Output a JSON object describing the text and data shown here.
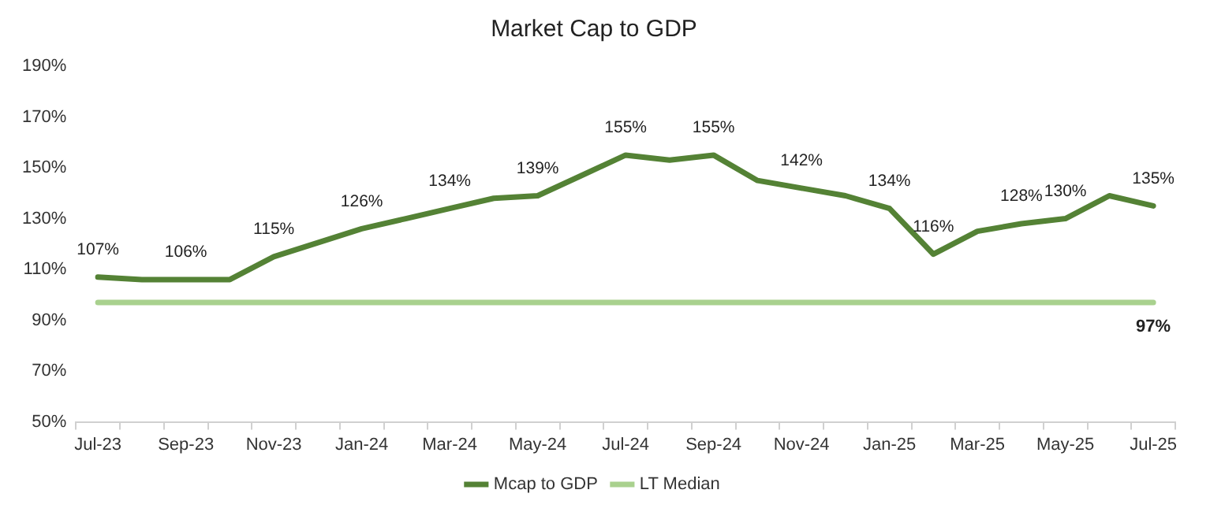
{
  "chart_data": {
    "type": "line",
    "title": "Market Cap to GDP",
    "categories": [
      "Jul-23",
      null,
      "Sep-23",
      null,
      "Nov-23",
      null,
      "Jan-24",
      null,
      "Mar-24",
      null,
      "May-24",
      null,
      "Jul-24",
      null,
      "Sep-24",
      null,
      "Nov-24",
      null,
      "Jan-25",
      null,
      "Mar-25",
      null,
      "May-25",
      null,
      "Jul-25"
    ],
    "series": [
      {
        "name": "Mcap to GDP",
        "color": "#548235",
        "values": [
          107,
          106,
          106,
          106,
          115,
          120.5,
          126,
          130,
          134,
          138,
          139,
          147,
          155,
          153,
          155,
          145,
          142,
          139,
          134,
          116,
          125,
          128,
          130,
          139,
          135
        ],
        "value_labels": [
          "107%",
          null,
          "106%",
          null,
          "115%",
          null,
          "126%",
          null,
          "134%",
          null,
          "139%",
          null,
          "155%",
          null,
          "155%",
          null,
          "142%",
          null,
          "134%",
          "116%",
          null,
          "128%",
          "130%",
          null,
          "135%"
        ]
      },
      {
        "name": "LT Median",
        "color": "#a9d18e",
        "values": [
          97,
          97,
          97,
          97,
          97,
          97,
          97,
          97,
          97,
          97,
          97,
          97,
          97,
          97,
          97,
          97,
          97,
          97,
          97,
          97,
          97,
          97,
          97,
          97,
          97
        ],
        "value_labels": [
          null,
          null,
          null,
          null,
          null,
          null,
          null,
          null,
          null,
          null,
          null,
          null,
          null,
          null,
          null,
          null,
          null,
          null,
          null,
          null,
          null,
          null,
          null,
          null,
          "97%"
        ]
      }
    ],
    "ylim": [
      50,
      190
    ],
    "yticks": [
      {
        "value": 50,
        "label": "50%"
      },
      {
        "value": 70,
        "label": "70%"
      },
      {
        "value": 90,
        "label": "90%"
      },
      {
        "value": 110,
        "label": "110%"
      },
      {
        "value": 130,
        "label": "130%"
      },
      {
        "value": 150,
        "label": "150%"
      },
      {
        "value": 170,
        "label": "170%"
      },
      {
        "value": 190,
        "label": "190%"
      }
    ],
    "grid": false,
    "legend": "bottom",
    "marker": "none",
    "line_style": "solid"
  }
}
